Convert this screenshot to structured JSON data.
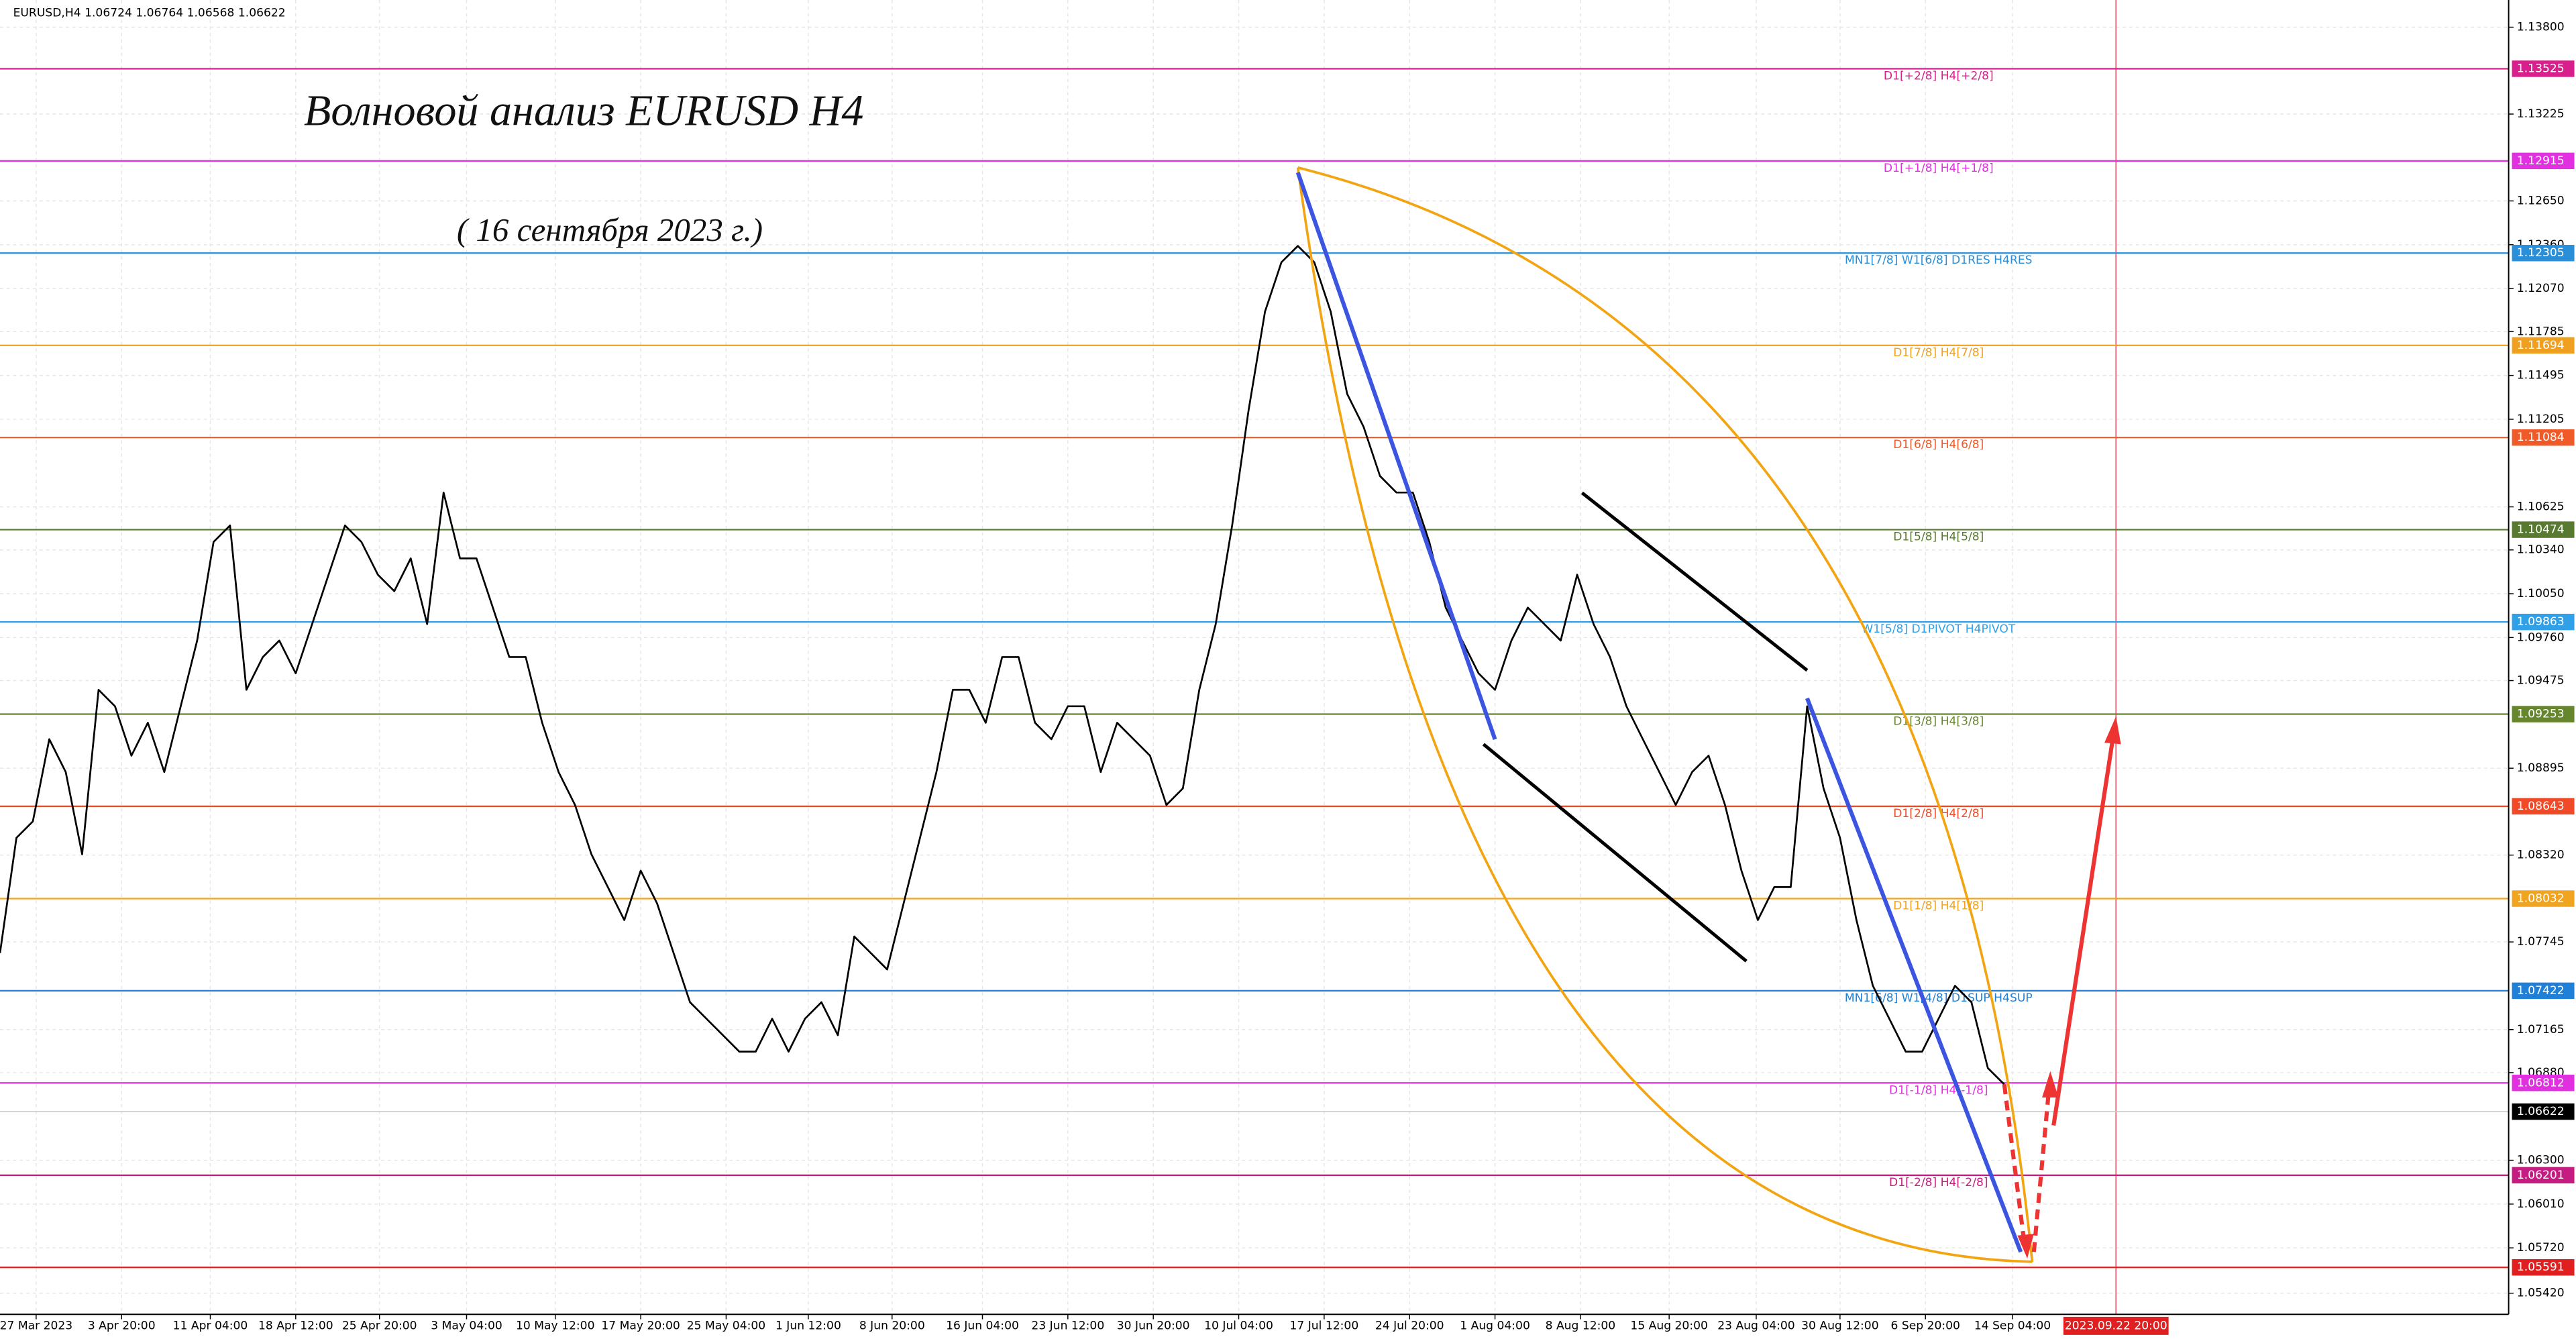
{
  "chart_data": {
    "type": "line",
    "header": "EURUSD,H4  1.06724 1.06764 1.06568 1.06622",
    "title": "Волновой анализ EURUSD H4",
    "subtitle": "( 16 сентября 2023 г.)",
    "color": "#000000",
    "grid": true,
    "xlim": [
      0,
      152.7
    ],
    "ylim": [
      1.0528,
      1.1398
    ],
    "x": [
      0,
      1,
      2,
      3,
      4,
      5,
      6,
      7,
      8,
      9,
      10,
      11,
      12,
      13,
      14,
      15,
      16,
      17,
      18,
      19,
      20,
      21,
      22,
      23,
      24,
      25,
      26,
      27,
      28,
      29,
      30,
      31,
      32,
      33,
      34,
      35,
      36,
      37,
      38,
      39,
      40,
      41,
      42,
      43,
      44,
      45,
      46,
      47,
      48,
      49,
      50,
      51,
      52,
      53,
      54,
      55,
      56,
      57,
      58,
      59,
      60,
      61,
      62,
      63,
      64,
      65,
      66,
      67,
      68,
      69,
      70,
      71,
      72,
      73,
      74,
      75,
      76,
      77,
      78,
      79,
      80,
      81,
      82,
      83,
      84,
      85,
      86,
      87,
      88,
      89,
      90,
      91,
      92,
      93,
      94,
      95,
      96,
      97,
      98,
      99,
      100,
      101,
      102,
      103,
      104,
      105,
      106,
      107,
      108,
      109,
      110,
      111,
      112,
      113,
      114,
      115,
      116,
      117,
      118,
      119,
      120,
      121,
      122
    ],
    "values": [
      1.07672,
      1.08434,
      1.08543,
      1.09087,
      1.0887,
      1.08325,
      1.09414,
      1.09305,
      1.08978,
      1.09196,
      1.0887,
      1.09305,
      1.0974,
      1.10393,
      1.10502,
      1.09414,
      1.09631,
      1.0974,
      1.09523,
      1.09849,
      1.10176,
      1.10502,
      1.10393,
      1.10176,
      1.10067,
      1.10284,
      1.09849,
      1.1072,
      1.10284,
      1.10284,
      1.09958,
      1.09631,
      1.09631,
      1.09196,
      1.0887,
      1.08652,
      1.08325,
      1.08108,
      1.0789,
      1.08217,
      1.07999,
      1.07672,
      1.07346,
      1.07237,
      1.07128,
      1.07019,
      1.07019,
      1.07237,
      1.07019,
      1.07237,
      1.07346,
      1.07128,
      1.07781,
      1.07672,
      1.07563,
      1.07999,
      1.08434,
      1.0887,
      1.09414,
      1.09414,
      1.09196,
      1.09631,
      1.09631,
      1.09196,
      1.09087,
      1.09305,
      1.09305,
      1.0887,
      1.09196,
      1.09087,
      1.08978,
      1.08652,
      1.08761,
      1.09414,
      1.09849,
      1.10502,
      1.11264,
      1.11917,
      1.12244,
      1.12352,
      1.12244,
      1.11917,
      1.11373,
      1.11155,
      1.10829,
      1.1072,
      1.1072,
      1.10393,
      1.09958,
      1.0974,
      1.09523,
      1.09414,
      1.0974,
      1.09958,
      1.09849,
      1.0974,
      1.10176,
      1.09849,
      1.09631,
      1.09305,
      1.09087,
      1.0887,
      1.08652,
      1.0887,
      1.08978,
      1.08652,
      1.08217,
      1.0789,
      1.08108,
      1.08108,
      1.09305,
      1.08761,
      1.08434,
      1.0789,
      1.07455,
      1.07237,
      1.07019,
      1.07019,
      1.07237,
      1.07455,
      1.07346,
      1.0691,
      1.06802
    ],
    "yticks": [
      {
        "value": 1.138,
        "label": "1.13800"
      },
      {
        "value": 1.13225,
        "label": "1.13225"
      },
      {
        "value": 1.1265,
        "label": "1.12650"
      },
      {
        "value": 1.1236,
        "label": "1.12360"
      },
      {
        "value": 1.1207,
        "label": "1.12070"
      },
      {
        "value": 1.11785,
        "label": "1.11785"
      },
      {
        "value": 1.11495,
        "label": "1.11495"
      },
      {
        "value": 1.11205,
        "label": "1.11205"
      },
      {
        "value": 1.10625,
        "label": "1.10625"
      },
      {
        "value": 1.1034,
        "label": "1.10340"
      },
      {
        "value": 1.1005,
        "label": "1.10050"
      },
      {
        "value": 1.0976,
        "label": "1.09760"
      },
      {
        "value": 1.09475,
        "label": "1.09475"
      },
      {
        "value": 1.08895,
        "label": "1.08895"
      },
      {
        "value": 1.0832,
        "label": "1.08320"
      },
      {
        "value": 1.07745,
        "label": "1.07745"
      },
      {
        "value": 1.07165,
        "label": "1.07165"
      },
      {
        "value": 1.0688,
        "label": "1.06880"
      },
      {
        "value": 1.063,
        "label": "1.06300"
      },
      {
        "value": 1.0601,
        "label": "1.06010"
      },
      {
        "value": 1.0572,
        "label": "1.05720"
      },
      {
        "value": 1.0542,
        "label": "1.05420"
      }
    ],
    "xticks": [
      {
        "value": 2.2,
        "label": "27 Mar 2023"
      },
      {
        "value": 7.4,
        "label": "3 Apr 20:00"
      },
      {
        "value": 12.8,
        "label": "11 Apr 04:00"
      },
      {
        "value": 18,
        "label": "18 Apr 12:00"
      },
      {
        "value": 23.1,
        "label": "25 Apr 20:00"
      },
      {
        "value": 28.4,
        "label": "3 May 04:00"
      },
      {
        "value": 33.8,
        "label": "10 May 12:00"
      },
      {
        "value": 39,
        "label": "17 May 20:00"
      },
      {
        "value": 44.2,
        "label": "25 May 04:00"
      },
      {
        "value": 49.2,
        "label": "1 Jun 12:00"
      },
      {
        "value": 54.3,
        "label": "8 Jun 20:00"
      },
      {
        "value": 59.8,
        "label": "16 Jun 04:00"
      },
      {
        "value": 65,
        "label": "23 Jun 12:00"
      },
      {
        "value": 70.2,
        "label": "30 Jun 20:00"
      },
      {
        "value": 75.4,
        "label": "10 Jul 04:00"
      },
      {
        "value": 80.6,
        "label": "17 Jul 12:00"
      },
      {
        "value": 85.8,
        "label": "24 Jul 20:00"
      },
      {
        "value": 91,
        "label": "1 Aug 04:00"
      },
      {
        "value": 96.2,
        "label": "8 Aug 12:00"
      },
      {
        "value": 101.6,
        "label": "15 Aug 20:00"
      },
      {
        "value": 106.9,
        "label": "23 Aug 04:00"
      },
      {
        "value": 112,
        "label": "30 Aug 12:00"
      },
      {
        "value": 117.2,
        "label": "6 Sep 20:00"
      },
      {
        "value": 122.5,
        "label": "14 Sep 04:00"
      }
    ],
    "time_marker": {
      "value": 128.8,
      "label": "2023.09.22 20:00"
    },
    "current_price": {
      "value": 1.06622,
      "label": "1.06622"
    },
    "levels": [
      {
        "value": 1.13525,
        "label": "1.13525",
        "name": "D1[+2/8] H4[+2/8]",
        "color": "#d8208c"
      },
      {
        "value": 1.12915,
        "label": "1.12915",
        "name": "D1[+1/8] H4[+1/8]",
        "color": "#e030e0"
      },
      {
        "value": 1.12305,
        "label": "1.12305",
        "name": "MN1[7/8] W1[6/8] D1RES H4RES",
        "color": "#2a8ed8"
      },
      {
        "value": 1.11694,
        "label": "1.11694",
        "name": "D1[7/8] H4[7/8]",
        "color": "#f0a020"
      },
      {
        "value": 1.11084,
        "label": "1.11084",
        "name": "D1[6/8] H4[6/8]",
        "color": "#f05a28"
      },
      {
        "value": 1.10474,
        "label": "1.10474",
        "name": "D1[5/8] H4[5/8]",
        "color": "#587a30"
      },
      {
        "value": 1.09863,
        "label": "1.09863",
        "name": "W1[5/8] D1PIVOT H4PIVOT",
        "color": "#30a0e8"
      },
      {
        "value": 1.09253,
        "label": "1.09253",
        "name": "D1[3/8] H4[3/8]",
        "color": "#66862e"
      },
      {
        "value": 1.08643,
        "label": "1.08643",
        "name": "D1[2/8] H4[2/8]",
        "color": "#f04a28"
      },
      {
        "value": 1.08032,
        "label": "1.08032",
        "name": "D1[1/8] H4[1/8]",
        "color": "#f0a420"
      },
      {
        "value": 1.07422,
        "label": "1.07422",
        "name": "MN1[6/8] W1[4/8] D1SUP H4SUP",
        "color": "#2080d8"
      },
      {
        "value": 1.06812,
        "label": "1.06812",
        "name": "D1[-1/8] H4[-1/8]",
        "color": "#e030e0"
      },
      {
        "value": 1.06201,
        "label": "1.06201",
        "name": "D1[-2/8] H4[-2/8]",
        "color": "#c41c80"
      },
      {
        "value": 1.05591,
        "label": "1.05591",
        "color": "#e02020"
      }
    ]
  }
}
